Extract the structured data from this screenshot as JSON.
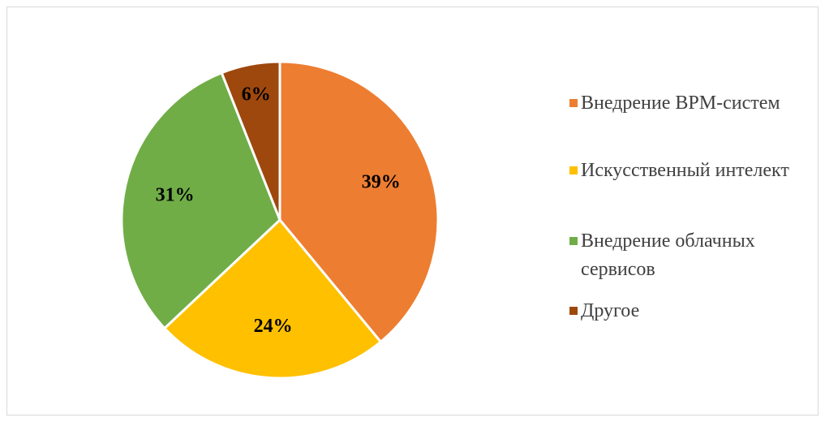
{
  "chart_data": {
    "type": "pie",
    "categories": [
      "Внедрение BPM-систем",
      "Искусственный интелект",
      "Внедрение облачных сервисов",
      "Другое"
    ],
    "values": [
      39,
      24,
      31,
      6
    ],
    "value_labels": [
      "39%",
      "24%",
      "31%",
      "6%"
    ],
    "colors": [
      "#ed7d31",
      "#ffc000",
      "#70ad47",
      "#9e480e"
    ],
    "legend": "right"
  }
}
